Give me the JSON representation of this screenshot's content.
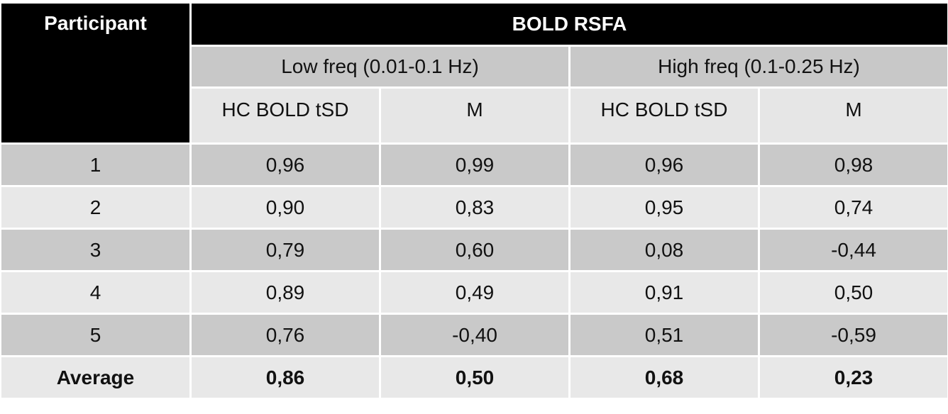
{
  "table": {
    "header": {
      "participant": "Participant",
      "group": "BOLD RSFA",
      "bands": [
        "Low freq (0.01-0.1 Hz)",
        "High freq (0.1-0.25 Hz)"
      ],
      "columns": [
        "HC BOLD tSD",
        "M",
        "HC BOLD tSD",
        "M"
      ]
    },
    "rows": [
      [
        "1",
        "0,96",
        "0,99",
        "0,96",
        "0,98"
      ],
      [
        "2",
        "0,90",
        "0,83",
        "0,95",
        "0,74"
      ],
      [
        "3",
        "0,79",
        "0,60",
        "0,08",
        "-0,44"
      ],
      [
        "4",
        "0,89",
        "0,49",
        "0,91",
        "0,50"
      ],
      [
        "5",
        "0,76",
        "-0,40",
        "0,51",
        "-0,59"
      ]
    ],
    "average": [
      "Average",
      "0,86",
      "0,50",
      "0,68",
      "0,23"
    ]
  }
}
